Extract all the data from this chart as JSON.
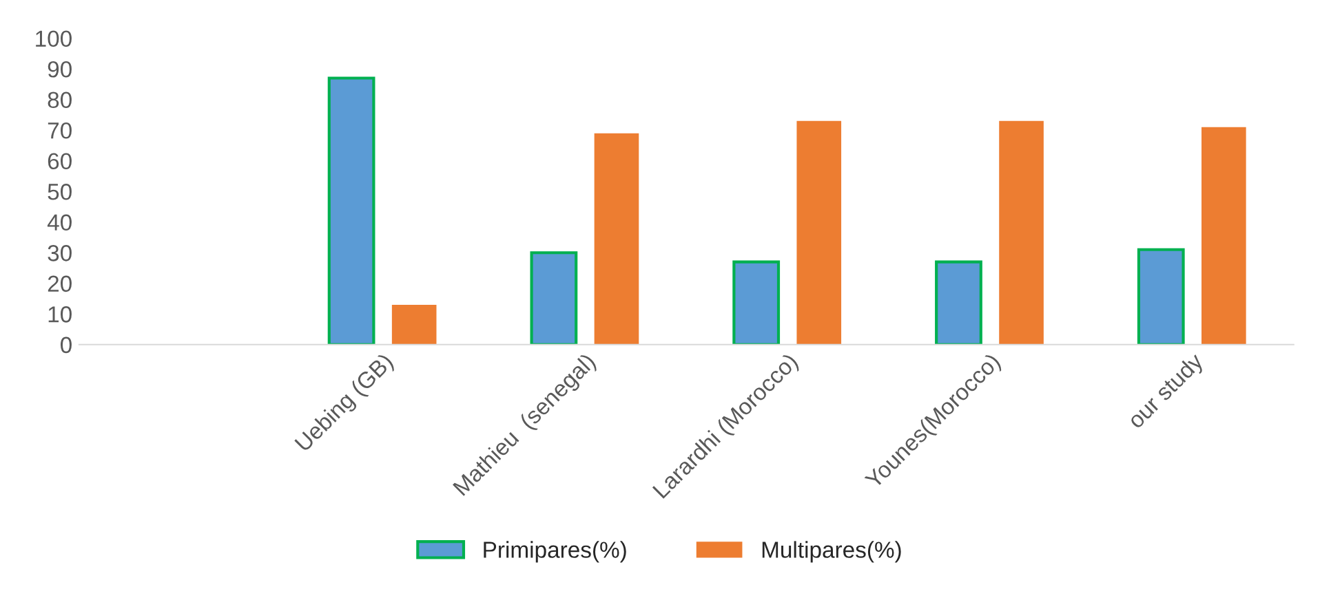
{
  "chart_data": {
    "type": "bar",
    "categories": [
      null,
      "Uebing (GB)",
      "Mathieu  (senegal)",
      "Larardhi (Morocco)",
      "Younes(Morocco)",
      "our study"
    ],
    "series": [
      {
        "name": "Primipares(%)",
        "color": "#5b9bd5",
        "values": [
          null,
          87,
          30,
          27,
          27,
          31
        ]
      },
      {
        "name": "Multipares(%)",
        "color": "#ed7d31",
        "values": [
          null,
          13,
          69,
          73,
          73,
          71
        ]
      }
    ],
    "ylim": [
      0,
      100
    ],
    "yticks": [
      0,
      10,
      20,
      30,
      40,
      50,
      60,
      70,
      80,
      90,
      100
    ],
    "grid": false,
    "legend": "bottom"
  }
}
